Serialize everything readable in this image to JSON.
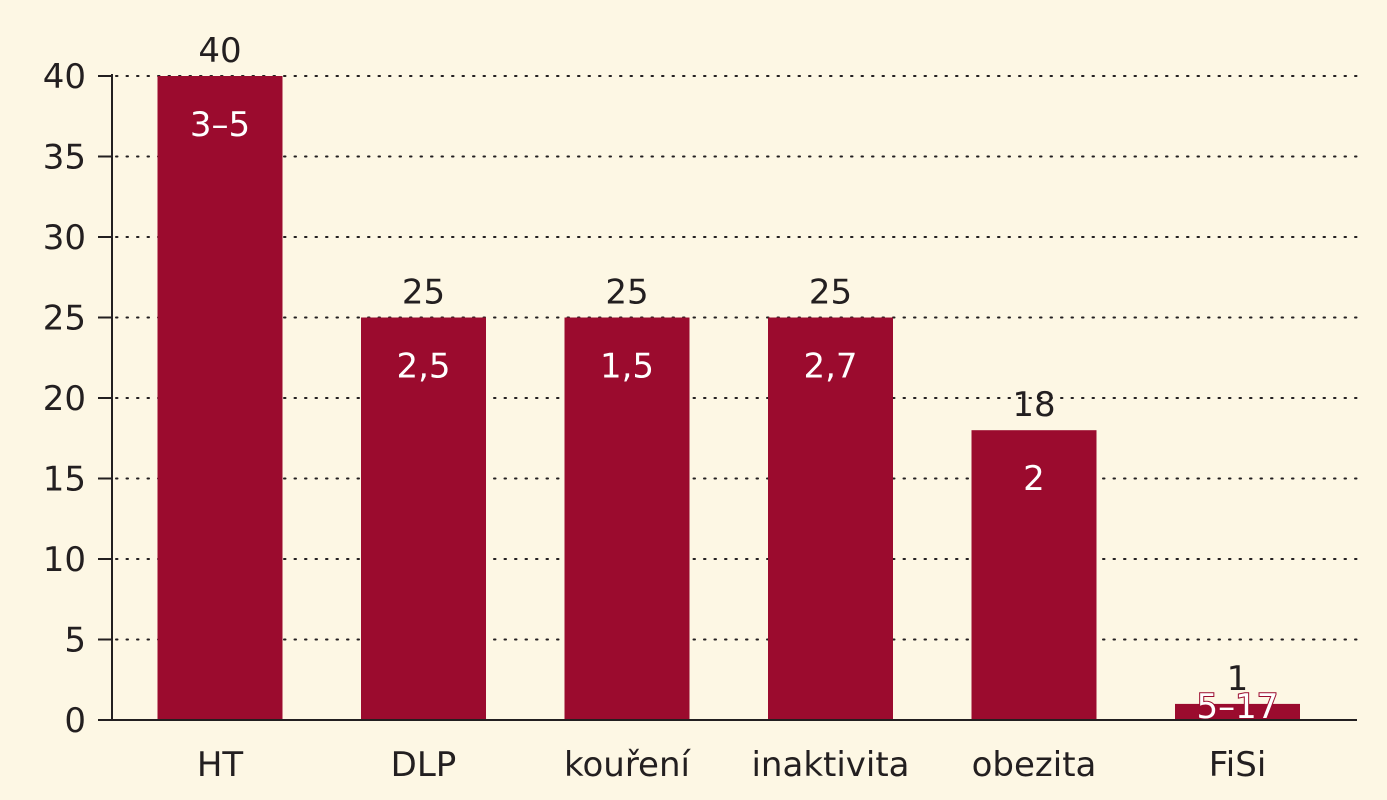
{
  "chart_data": {
    "type": "bar",
    "categories": [
      "HT",
      "DLP",
      "kouření",
      "inaktivita",
      "obezita",
      "FiSi"
    ],
    "values": [
      40,
      25,
      25,
      25,
      18,
      1
    ],
    "value_labels": [
      "40",
      "25",
      "25",
      "25",
      "18",
      "1"
    ],
    "inner_labels": [
      "3–5",
      "2,5",
      "1,5",
      "2,7",
      "2",
      "5–17"
    ],
    "title": "",
    "xlabel": "",
    "ylabel": "",
    "ylim": [
      0,
      40
    ],
    "yticks": [
      0,
      5,
      10,
      15,
      20,
      25,
      30,
      35,
      40
    ],
    "grid": true,
    "legend": "none"
  },
  "colors": {
    "background": "#fdf7e4",
    "bar": "#9b0b2e",
    "text": "#231f20",
    "inner_text": "#ffffff"
  }
}
